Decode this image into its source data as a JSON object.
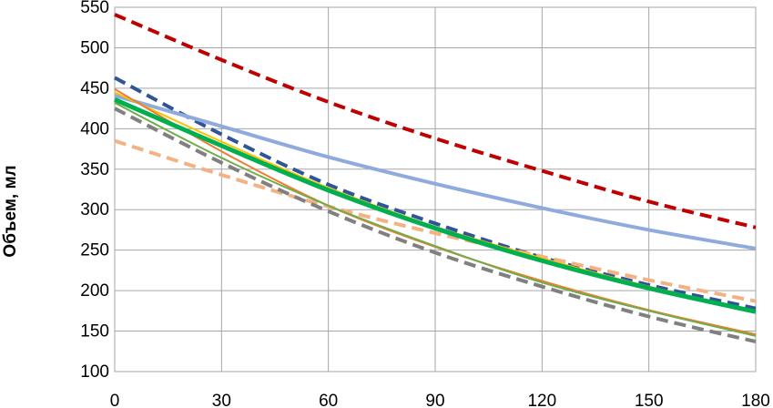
{
  "chart_data": {
    "type": "line",
    "xlabel": "",
    "ylabel": "Объем, мл",
    "xlim": [
      0,
      180
    ],
    "ylim": [
      100,
      550
    ],
    "xticks": [
      0,
      30,
      60,
      90,
      120,
      150,
      180
    ],
    "yticks": [
      100,
      150,
      200,
      250,
      300,
      350,
      400,
      450,
      500,
      550
    ],
    "grid": true,
    "legend": "none",
    "series": [
      {
        "color": "#c00000",
        "style": "dashed",
        "width": 4,
        "x": [
          0,
          30,
          60,
          90,
          120,
          150,
          180
        ],
        "y": [
          541,
          485,
          433,
          388,
          348,
          310,
          278
        ]
      },
      {
        "color": "#2f5597",
        "style": "dashed",
        "width": 4,
        "x": [
          0,
          30,
          60,
          90,
          120,
          150,
          180
        ],
        "y": [
          463,
          393,
          331,
          283,
          241,
          207,
          178
        ]
      },
      {
        "color": "#8faadc",
        "style": "solid",
        "width": 4,
        "x": [
          0,
          30,
          60,
          90,
          120,
          150,
          180
        ],
        "y": [
          441,
          403,
          365,
          332,
          302,
          275,
          252
        ]
      },
      {
        "color": "#f4b183",
        "style": "dashed",
        "width": 4,
        "x": [
          0,
          30,
          60,
          90,
          120,
          150,
          180
        ],
        "y": [
          385,
          343,
          304,
          271,
          242,
          213,
          187
        ]
      },
      {
        "color": "#808080",
        "style": "dashed",
        "width": 4,
        "x": [
          0,
          30,
          60,
          90,
          120,
          150,
          180
        ],
        "y": [
          425,
          358,
          298,
          247,
          205,
          168,
          137
        ]
      },
      {
        "color": "#ffc000",
        "style": "solid",
        "width": 2,
        "x": [
          0,
          30,
          60,
          90,
          120,
          150,
          180
        ],
        "y": [
          445,
          384,
          327,
          279,
          240,
          205,
          175
        ]
      },
      {
        "color": "#ed7d31",
        "style": "solid",
        "width": 2,
        "x": [
          0,
          30,
          60,
          90,
          120,
          150,
          180
        ],
        "y": [
          449,
          372,
          305,
          254,
          212,
          176,
          146
        ]
      },
      {
        "color": "#70ad47",
        "style": "solid",
        "width": 2,
        "x": [
          0,
          30,
          60,
          90,
          120,
          150,
          180
        ],
        "y": [
          432,
          364,
          305,
          255,
          210,
          175,
          144
        ]
      },
      {
        "color": "#00b050",
        "style": "solid",
        "width": 5,
        "x": [
          0,
          30,
          60,
          90,
          120,
          150,
          180
        ],
        "y": [
          436,
          379,
          324,
          277,
          237,
          203,
          174
        ]
      }
    ]
  }
}
